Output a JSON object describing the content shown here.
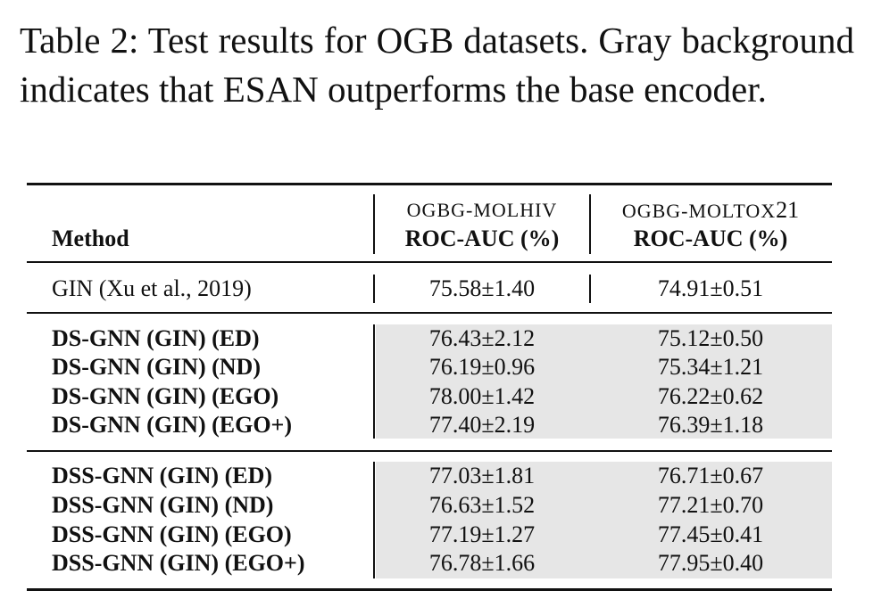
{
  "caption": "Table 2: Test results for OGB datasets. Gray background indicates that ESAN outperforms the base encoder.",
  "table": {
    "header": {
      "method": "Method",
      "col1_dataset": "OGBG-MOLHIV",
      "col1_metric": "ROC-AUC (%)",
      "col2_dataset_prefix": "OGBG-MOLTOX",
      "col2_dataset_suffix": "21",
      "col2_metric": "ROC-AUC (%)"
    },
    "baseline": {
      "method": "GIN (Xu et al., 2019)",
      "molhiv": "75.58±1.40",
      "moltox21": "74.91±0.51"
    },
    "ds_rows": [
      {
        "method": "DS-GNN (GIN) (ED)",
        "molhiv": "76.43±2.12",
        "moltox21": "75.12±0.50"
      },
      {
        "method": "DS-GNN (GIN) (ND)",
        "molhiv": "76.19±0.96",
        "moltox21": "75.34±1.21"
      },
      {
        "method": "DS-GNN (GIN) (EGO)",
        "molhiv": "78.00±1.42",
        "moltox21": "76.22±0.62"
      },
      {
        "method": "DS-GNN (GIN) (EGO+)",
        "molhiv": "77.40±2.19",
        "moltox21": "76.39±1.18"
      }
    ],
    "dss_rows": [
      {
        "method": "DSS-GNN (GIN) (ED)",
        "molhiv": "77.03±1.81",
        "moltox21": "76.71±0.67"
      },
      {
        "method": "DSS-GNN (GIN) (ND)",
        "molhiv": "76.63±1.52",
        "moltox21": "77.21±0.70"
      },
      {
        "method": "DSS-GNN (GIN) (EGO)",
        "molhiv": "77.19±1.27",
        "moltox21": "77.45±0.41"
      },
      {
        "method": "DSS-GNN (GIN) (EGO+)",
        "molhiv": "76.78±1.66",
        "moltox21": "77.95±0.40"
      }
    ],
    "highlight_color": "#e6e6e6"
  }
}
